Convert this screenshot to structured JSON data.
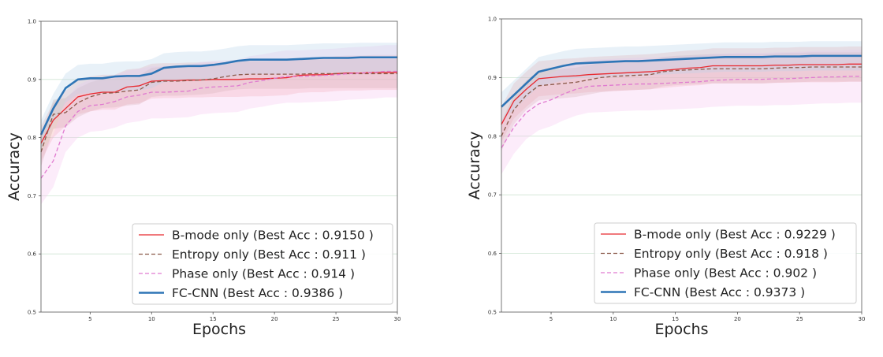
{
  "chart_data": [
    {
      "type": "line",
      "xlabel": "Epochs",
      "ylabel": "Accuracy",
      "xlim": [
        1,
        30
      ],
      "ylim": [
        0.5,
        1.0
      ],
      "xticks": [
        5,
        10,
        15,
        20,
        25,
        30
      ],
      "yticks": [
        0.5,
        0.6,
        0.7,
        0.8,
        0.9,
        1.0
      ],
      "ytick_labels": [
        "0.5",
        "0.6",
        "0.7",
        "0.8",
        "0.9",
        "1.0"
      ],
      "grid": "horizontal",
      "legend_position": "lower-right",
      "series": [
        {
          "name": "B-mode only (Best Acc : 0.9150 )",
          "color": "#e8292f",
          "style": "solid",
          "band": 0.03,
          "band_color": "#f4a6a6",
          "x": [
            1,
            2,
            3,
            4,
            5,
            6,
            7,
            8,
            9,
            10,
            11,
            12,
            13,
            14,
            15,
            16,
            17,
            18,
            19,
            20,
            21,
            22,
            23,
            24,
            25,
            26,
            27,
            28,
            29,
            30
          ],
          "y": [
            0.79,
            0.83,
            0.85,
            0.87,
            0.875,
            0.878,
            0.878,
            0.887,
            0.889,
            0.897,
            0.898,
            0.898,
            0.899,
            0.899,
            0.9,
            0.9,
            0.9,
            0.901,
            0.901,
            0.902,
            0.903,
            0.907,
            0.908,
            0.908,
            0.91,
            0.911,
            0.911,
            0.912,
            0.912,
            0.912
          ]
        },
        {
          "name": "Entropy only (Best Acc : 0.911 )",
          "color": "#8b5a4a",
          "style": "dashed",
          "band": 0.025,
          "band_color": "#c9a9a0",
          "x": [
            1,
            2,
            3,
            4,
            5,
            6,
            7,
            8,
            9,
            10,
            11,
            12,
            13,
            14,
            15,
            16,
            17,
            18,
            19,
            20,
            21,
            22,
            23,
            24,
            25,
            26,
            27,
            28,
            29,
            30
          ],
          "y": [
            0.775,
            0.84,
            0.843,
            0.86,
            0.87,
            0.876,
            0.877,
            0.88,
            0.882,
            0.895,
            0.897,
            0.897,
            0.898,
            0.899,
            0.901,
            0.905,
            0.908,
            0.909,
            0.909,
            0.909,
            0.909,
            0.909,
            0.91,
            0.91,
            0.91,
            0.91,
            0.91,
            0.91,
            0.91,
            0.91
          ]
        },
        {
          "name": "Phase only (Best Acc : 0.914 )",
          "color": "#e07ad0",
          "style": "dashed",
          "band": 0.045,
          "band_color": "#f5c3ee",
          "x": [
            1,
            2,
            3,
            4,
            5,
            6,
            7,
            8,
            9,
            10,
            11,
            12,
            13,
            14,
            15,
            16,
            17,
            18,
            19,
            20,
            21,
            22,
            23,
            24,
            25,
            26,
            27,
            28,
            29,
            30
          ],
          "y": [
            0.73,
            0.76,
            0.82,
            0.845,
            0.855,
            0.857,
            0.862,
            0.87,
            0.873,
            0.878,
            0.878,
            0.879,
            0.88,
            0.885,
            0.887,
            0.888,
            0.889,
            0.895,
            0.898,
            0.902,
            0.905,
            0.905,
            0.906,
            0.907,
            0.908,
            0.91,
            0.911,
            0.912,
            0.914,
            0.914
          ]
        },
        {
          "name": "FC-CNN (Best Acc : 0.9386 )",
          "color": "#2e75b6",
          "style": "solid",
          "band": 0.025,
          "band_color": "#b7d3ea",
          "x": [
            1,
            2,
            3,
            4,
            5,
            6,
            7,
            8,
            9,
            10,
            11,
            12,
            13,
            14,
            15,
            16,
            17,
            18,
            19,
            20,
            21,
            22,
            23,
            24,
            25,
            26,
            27,
            28,
            29,
            30
          ],
          "y": [
            0.805,
            0.85,
            0.885,
            0.9,
            0.902,
            0.902,
            0.905,
            0.906,
            0.906,
            0.91,
            0.92,
            0.922,
            0.923,
            0.923,
            0.925,
            0.928,
            0.932,
            0.934,
            0.934,
            0.934,
            0.934,
            0.935,
            0.936,
            0.937,
            0.937,
            0.937,
            0.938,
            0.938,
            0.938,
            0.938
          ]
        }
      ]
    },
    {
      "type": "line",
      "xlabel": "Epochs",
      "ylabel": "Accuracy",
      "xlim": [
        1,
        30
      ],
      "ylim": [
        0.5,
        1.0
      ],
      "xticks": [
        5,
        10,
        15,
        20,
        25,
        30
      ],
      "yticks": [
        0.5,
        0.6,
        0.7,
        0.8,
        0.9,
        1.0
      ],
      "ytick_labels": [
        "0.5",
        "0.6",
        "0.7",
        "0.8",
        "0.9",
        "1.0"
      ],
      "grid": "horizontal",
      "legend_position": "lower-right",
      "series": [
        {
          "name": "B-mode only (Best Acc : 0.9229 )",
          "color": "#e8292f",
          "style": "solid",
          "band": 0.03,
          "band_color": "#f4a6a6",
          "x": [
            1,
            2,
            3,
            4,
            5,
            6,
            7,
            8,
            9,
            10,
            11,
            12,
            13,
            14,
            15,
            16,
            17,
            18,
            19,
            20,
            21,
            22,
            23,
            24,
            25,
            26,
            27,
            28,
            29,
            30
          ],
          "y": [
            0.82,
            0.86,
            0.88,
            0.898,
            0.9,
            0.902,
            0.903,
            0.905,
            0.906,
            0.907,
            0.908,
            0.909,
            0.91,
            0.912,
            0.914,
            0.916,
            0.917,
            0.92,
            0.92,
            0.92,
            0.92,
            0.92,
            0.921,
            0.921,
            0.922,
            0.922,
            0.922,
            0.922,
            0.923,
            0.923
          ]
        },
        {
          "name": "Entropy only (Best Acc : 0.918 )",
          "color": "#8b5a4a",
          "style": "dashed",
          "band": 0.025,
          "band_color": "#c9a9a0",
          "x": [
            1,
            2,
            3,
            4,
            5,
            6,
            7,
            8,
            9,
            10,
            11,
            12,
            13,
            14,
            15,
            16,
            17,
            18,
            19,
            20,
            21,
            22,
            23,
            24,
            25,
            26,
            27,
            28,
            29,
            30
          ],
          "y": [
            0.8,
            0.845,
            0.87,
            0.886,
            0.888,
            0.89,
            0.892,
            0.896,
            0.9,
            0.902,
            0.903,
            0.904,
            0.905,
            0.91,
            0.912,
            0.913,
            0.914,
            0.915,
            0.915,
            0.915,
            0.915,
            0.915,
            0.916,
            0.917,
            0.917,
            0.918,
            0.918,
            0.918,
            0.918,
            0.918
          ]
        },
        {
          "name": "Phase only (Best Acc : 0.902 )",
          "color": "#e07ad0",
          "style": "dashed",
          "band": 0.045,
          "band_color": "#f5c3ee",
          "x": [
            1,
            2,
            3,
            4,
            5,
            6,
            7,
            8,
            9,
            10,
            11,
            12,
            13,
            14,
            15,
            16,
            17,
            18,
            19,
            20,
            21,
            22,
            23,
            24,
            25,
            26,
            27,
            28,
            29,
            30
          ],
          "y": [
            0.78,
            0.815,
            0.84,
            0.855,
            0.862,
            0.872,
            0.88,
            0.885,
            0.886,
            0.887,
            0.888,
            0.889,
            0.889,
            0.89,
            0.891,
            0.892,
            0.893,
            0.895,
            0.896,
            0.897,
            0.897,
            0.897,
            0.898,
            0.898,
            0.899,
            0.9,
            0.901,
            0.901,
            0.902,
            0.902
          ]
        },
        {
          "name": "FC-CNN (Best Acc : 0.9373 )",
          "color": "#2e75b6",
          "style": "solid",
          "band": 0.025,
          "band_color": "#b7d3ea",
          "x": [
            1,
            2,
            3,
            4,
            5,
            6,
            7,
            8,
            9,
            10,
            11,
            12,
            13,
            14,
            15,
            16,
            17,
            18,
            19,
            20,
            21,
            22,
            23,
            24,
            25,
            26,
            27,
            28,
            29,
            30
          ],
          "y": [
            0.85,
            0.87,
            0.89,
            0.91,
            0.915,
            0.92,
            0.924,
            0.925,
            0.926,
            0.927,
            0.928,
            0.928,
            0.929,
            0.93,
            0.931,
            0.932,
            0.933,
            0.934,
            0.935,
            0.935,
            0.935,
            0.935,
            0.936,
            0.936,
            0.936,
            0.937,
            0.937,
            0.937,
            0.937,
            0.937
          ]
        }
      ]
    }
  ]
}
